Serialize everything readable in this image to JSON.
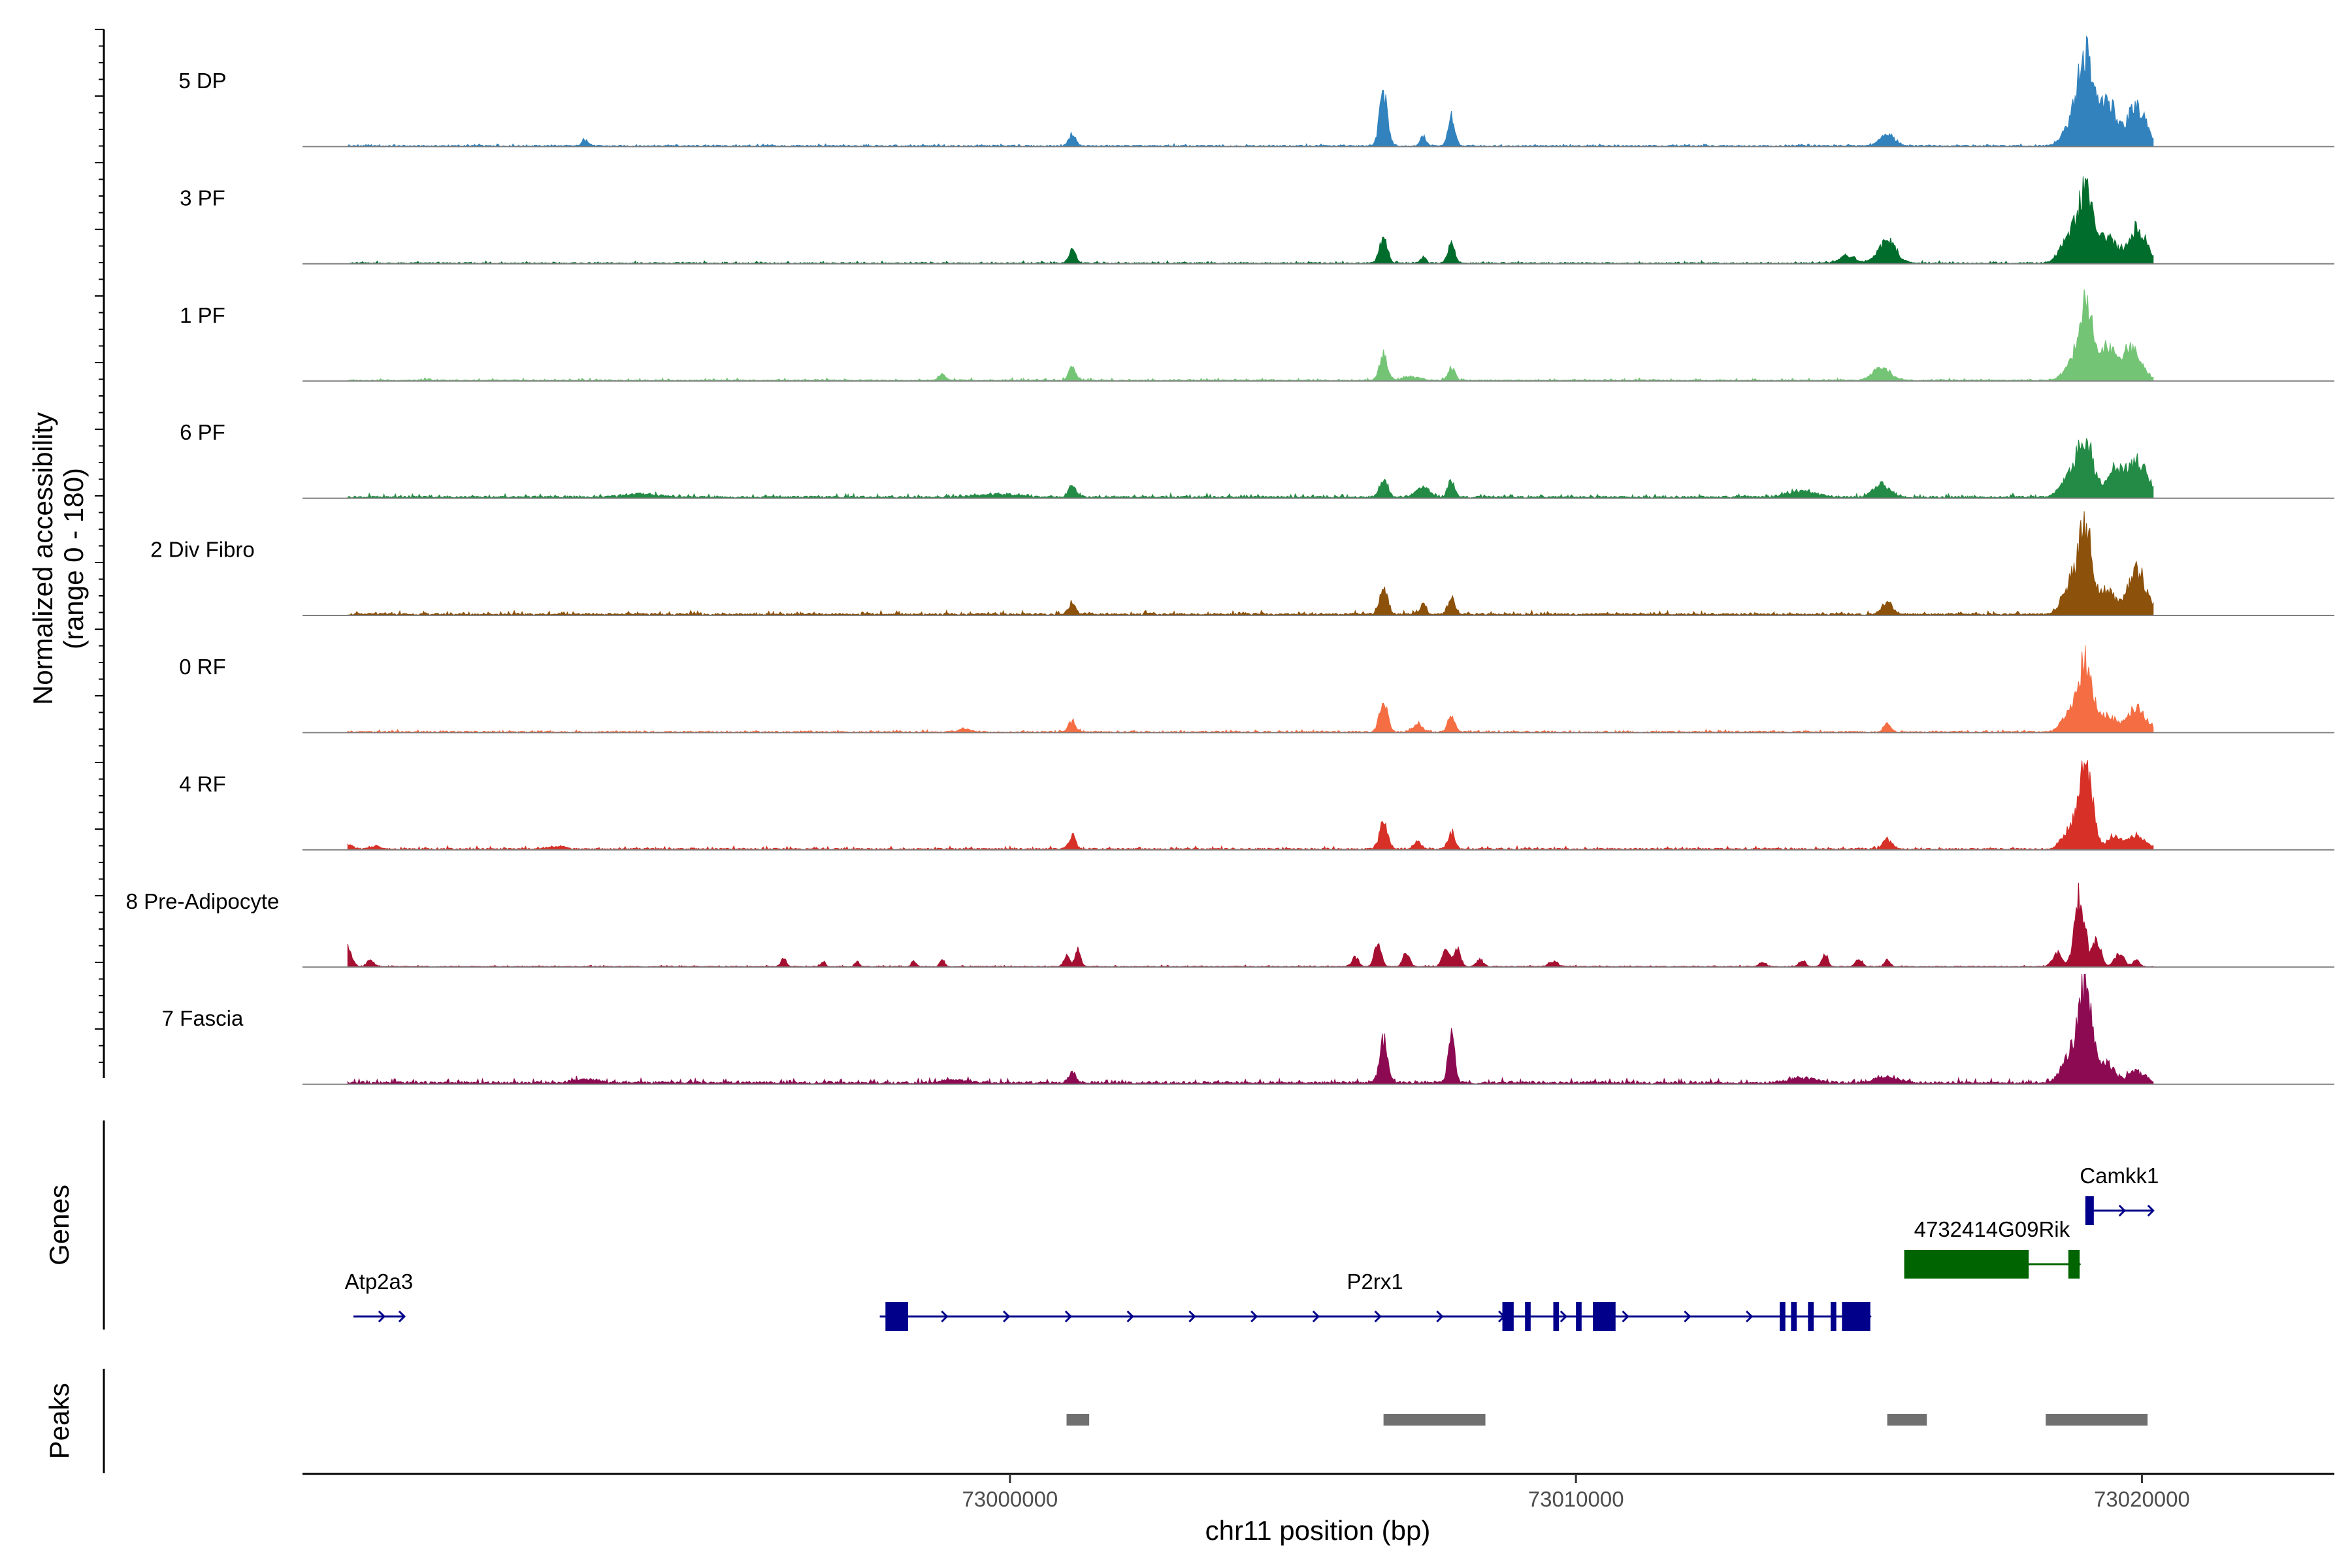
{
  "chart_data": {
    "type": "area",
    "title": "",
    "region": {
      "chromosome": "chr11",
      "start": 72987500,
      "end": 73023400
    },
    "ylabel_line1": "Normalized accessibility",
    "ylabel_line2": "(range 0 - 180)",
    "y_range": [
      0,
      180
    ],
    "xlabel": "chr11 position (bp)",
    "x_ticks": [
      {
        "value": 73000000,
        "label": "73000000"
      },
      {
        "value": 73010000,
        "label": "73010000"
      },
      {
        "value": 73020000,
        "label": "73020000"
      }
    ],
    "genes_panel_label": "Genes",
    "peaks_panel_label": "Peaks",
    "series": [
      {
        "name": "5 DP",
        "color": "#3182bd",
        "baseline": 1.2,
        "peaks": [
          [
            72992500,
            10,
            60
          ],
          [
            73001100,
            20,
            60
          ],
          [
            73006600,
            85,
            70
          ],
          [
            73007300,
            15,
            50
          ],
          [
            73007800,
            45,
            60
          ],
          [
            73015500,
            18,
            130
          ],
          [
            73018700,
            22,
            130
          ],
          [
            73019000,
            150,
            140
          ],
          [
            73019400,
            70,
            130
          ],
          [
            73019900,
            65,
            170
          ]
        ]
      },
      {
        "name": "3 PF",
        "color": "#006d2c",
        "baseline": 1.2,
        "peaks": [
          [
            73001100,
            22,
            60
          ],
          [
            73006600,
            40,
            70
          ],
          [
            73007300,
            10,
            50
          ],
          [
            73007800,
            32,
            60
          ],
          [
            73014800,
            12,
            140
          ],
          [
            73015500,
            38,
            150
          ],
          [
            73018700,
            35,
            150
          ],
          [
            73019000,
            112,
            140
          ],
          [
            73019400,
            40,
            130
          ],
          [
            73019900,
            55,
            170
          ]
        ]
      },
      {
        "name": "1 PF",
        "color": "#74c476",
        "baseline": 1.2,
        "peaks": [
          [
            72998800,
            10,
            60
          ],
          [
            73001100,
            22,
            60
          ],
          [
            73006600,
            40,
            70
          ],
          [
            73007100,
            6,
            150
          ],
          [
            73007800,
            20,
            60
          ],
          [
            73015400,
            22,
            150
          ],
          [
            73018700,
            15,
            130
          ],
          [
            73019000,
            123,
            130
          ],
          [
            73019400,
            50,
            130
          ],
          [
            73019800,
            52,
            170
          ]
        ]
      },
      {
        "name": "6 PF",
        "color": "#238b45",
        "baseline": 2.0,
        "peaks": [
          [
            72993500,
            5,
            300
          ],
          [
            72999800,
            5,
            300
          ],
          [
            73001100,
            18,
            60
          ],
          [
            73006600,
            28,
            70
          ],
          [
            73007300,
            15,
            120
          ],
          [
            73007800,
            28,
            60
          ],
          [
            73014000,
            10,
            250
          ],
          [
            73015400,
            20,
            150
          ],
          [
            73018700,
            28,
            150
          ],
          [
            73019000,
            92,
            140
          ],
          [
            73019500,
            40,
            130
          ],
          [
            73019900,
            58,
            190
          ]
        ]
      },
      {
        "name": "2 Div Fibro",
        "color": "#8c510a",
        "baseline": 2.0,
        "peaks": [
          [
            73001100,
            18,
            60
          ],
          [
            73006600,
            40,
            70
          ],
          [
            73007300,
            18,
            50
          ],
          [
            73007800,
            25,
            60
          ],
          [
            73015500,
            20,
            90
          ],
          [
            73018700,
            40,
            130
          ],
          [
            73019000,
            145,
            130
          ],
          [
            73019400,
            40,
            100
          ],
          [
            73019900,
            70,
            170
          ]
        ]
      },
      {
        "name": "0 RF",
        "color": "#f46d43",
        "baseline": 1.2,
        "peaks": [
          [
            72999200,
            5,
            100
          ],
          [
            73001100,
            18,
            60
          ],
          [
            73006600,
            48,
            70
          ],
          [
            73007200,
            12,
            80
          ],
          [
            73007800,
            28,
            60
          ],
          [
            73015500,
            15,
            60
          ],
          [
            73018700,
            25,
            130
          ],
          [
            73019000,
            115,
            130
          ],
          [
            73019400,
            25,
            120
          ],
          [
            73019900,
            38,
            170
          ]
        ]
      },
      {
        "name": "4 RF",
        "color": "#d73027",
        "baseline": 1.5,
        "peaks": [
          [
            72988300,
            8,
            80
          ],
          [
            72988800,
            5,
            80
          ],
          [
            72992000,
            4,
            150
          ],
          [
            73001100,
            20,
            60
          ],
          [
            73006600,
            42,
            70
          ],
          [
            73007200,
            12,
            60
          ],
          [
            73007800,
            28,
            60
          ],
          [
            73015500,
            15,
            80
          ],
          [
            73018700,
            28,
            120
          ],
          [
            73019000,
            138,
            120
          ],
          [
            73019500,
            20,
            110
          ],
          [
            73019900,
            22,
            150
          ]
        ]
      },
      {
        "name": "8 Pre-Adipocyte",
        "color": "#a50f31",
        "baseline": 0.8,
        "peaks": [
          [
            72988300,
            30,
            70
          ],
          [
            72988700,
            10,
            60
          ],
          [
            72996000,
            12,
            50
          ],
          [
            72996700,
            8,
            40
          ],
          [
            72997300,
            8,
            40
          ],
          [
            72998300,
            10,
            40
          ],
          [
            72998800,
            12,
            40
          ],
          [
            73001000,
            18,
            50
          ],
          [
            73001200,
            28,
            50
          ],
          [
            73006100,
            15,
            60
          ],
          [
            73006500,
            35,
            60
          ],
          [
            73007000,
            22,
            60
          ],
          [
            73007700,
            25,
            60
          ],
          [
            73007900,
            30,
            60
          ],
          [
            73008300,
            12,
            60
          ],
          [
            73009600,
            8,
            80
          ],
          [
            73013300,
            8,
            60
          ],
          [
            73014000,
            10,
            60
          ],
          [
            73014400,
            20,
            50
          ],
          [
            73015000,
            12,
            60
          ],
          [
            73015500,
            10,
            50
          ],
          [
            73018500,
            22,
            80
          ],
          [
            73018900,
            112,
            90
          ],
          [
            73019200,
            40,
            80
          ],
          [
            73019600,
            22,
            80
          ],
          [
            73019900,
            10,
            60
          ]
        ]
      },
      {
        "name": "7 Fascia",
        "color": "#8c0a52",
        "baseline": 2.5,
        "peaks": [
          [
            72992500,
            6,
            200
          ],
          [
            72999000,
            5,
            200
          ],
          [
            73001100,
            18,
            60
          ],
          [
            73006600,
            68,
            70
          ],
          [
            73007800,
            75,
            60
          ],
          [
            73014000,
            8,
            250
          ],
          [
            73015500,
            10,
            200
          ],
          [
            73018700,
            42,
            130
          ],
          [
            73019000,
            160,
            120
          ],
          [
            73019400,
            30,
            120
          ],
          [
            73019900,
            18,
            160
          ]
        ]
      }
    ],
    "genes": [
      {
        "name": "Atp2a3",
        "color": "#00008b",
        "start": 72988400,
        "end": 72989300,
        "strand": "+",
        "row": 2,
        "exons": []
      },
      {
        "name": "P2rx1",
        "color": "#00008b",
        "start": 72997700,
        "end": 73015200,
        "strand": "+",
        "row": 2,
        "exons": [
          [
            72997800,
            72998200
          ],
          [
            73008700,
            73008900
          ],
          [
            73009100,
            73009200
          ],
          [
            73009600,
            73009700
          ],
          [
            73010000,
            73010100
          ],
          [
            73010300,
            73010700
          ],
          [
            73013600,
            73013700
          ],
          [
            73013800,
            73013900
          ],
          [
            73014100,
            73014200
          ],
          [
            73014500,
            73014600
          ],
          [
            73015000,
            73015200
          ],
          [
            73014700,
            73015200
          ]
        ]
      },
      {
        "name": "4732414G09Rik",
        "color": "#006400",
        "start": 73015800,
        "end": 73018900,
        "strand": "+",
        "row": 1,
        "exons": [
          [
            73015800,
            73018000
          ],
          [
            73018700,
            73018900
          ]
        ]
      },
      {
        "name": "Camkk1",
        "color": "#00008b",
        "start": 73019000,
        "end": 73020200,
        "strand": "+",
        "row": 0,
        "exons": [
          [
            73019000,
            73019150
          ]
        ]
      }
    ],
    "peaks": [
      [
        73001000,
        73001400
      ],
      [
        73006600,
        73008400
      ],
      [
        73015500,
        73016200
      ],
      [
        73018300,
        73020100
      ]
    ]
  }
}
